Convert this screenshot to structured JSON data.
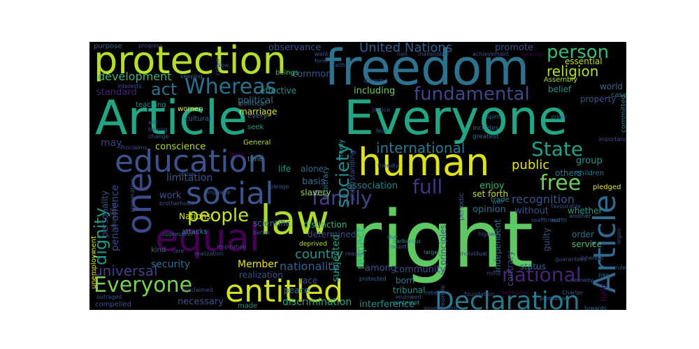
{
  "wordcloud": {
    "background": "#000000",
    "colormap": "viridis",
    "words": [
      {
        "text": "right",
        "color": "#5ec962"
      },
      {
        "text": "Article",
        "color": "#21a585"
      },
      {
        "text": "Everyone",
        "color": "#21a585"
      },
      {
        "text": "freedom",
        "color": "#2c728e"
      },
      {
        "text": "protection",
        "color": "#b5de2b"
      },
      {
        "text": "human",
        "color": "#dde318"
      },
      {
        "text": "law",
        "color": "#addc30"
      },
      {
        "text": "equal",
        "color": "#440154"
      },
      {
        "text": "education",
        "color": "#3b528b"
      },
      {
        "text": "entitled",
        "color": "#d2e21b"
      },
      {
        "text": "social",
        "color": "#39558c"
      },
      {
        "text": "one",
        "color": "#3e4a89"
      },
      {
        "text": "Declaration",
        "color": "#2a788e"
      },
      {
        "text": "Article",
        "color": "#31688e"
      },
      {
        "text": "Everyone",
        "color": "#7ad151"
      },
      {
        "text": "Whereas",
        "color": "#2c728e"
      },
      {
        "text": "fundamental",
        "color": "#3f4788"
      },
      {
        "text": "free",
        "color": "#6ccd5a"
      },
      {
        "text": "people",
        "color": "#cae11f"
      },
      {
        "text": "family",
        "color": "#414487"
      },
      {
        "text": "full",
        "color": "#46337e"
      },
      {
        "text": "national",
        "color": "#482475"
      },
      {
        "text": "society",
        "color": "#23898e"
      },
      {
        "text": "State",
        "color": "#1fa088"
      },
      {
        "text": "universal",
        "color": "#433e85"
      },
      {
        "text": "dignity",
        "color": "#1f9a8a"
      },
      {
        "text": "person",
        "color": "#3aba76"
      },
      {
        "text": "religion",
        "color": "#b8de29"
      },
      {
        "text": "act",
        "color": "#2d708e"
      },
      {
        "text": "development",
        "color": "#35b779"
      },
      {
        "text": "international",
        "color": "#2a788e"
      },
      {
        "text": "United Nations",
        "color": "#355f8d"
      },
      {
        "text": "country",
        "color": "#1f988b"
      },
      {
        "text": "public",
        "color": "#e5e419"
      },
      {
        "text": "nationality",
        "color": "#33638d"
      },
      {
        "text": "respect",
        "color": "#27ad81"
      },
      {
        "text": "recognition",
        "color": "#3b528b"
      },
      {
        "text": "security",
        "color": "#2e6e8e"
      },
      {
        "text": "Member",
        "color": "#e7e419"
      },
      {
        "text": "promote",
        "color": "#3b528b"
      },
      {
        "text": "observance",
        "color": "#3b528b"
      },
      {
        "text": "political",
        "color": "#2c728e"
      },
      {
        "text": "standard",
        "color": "#482173"
      },
      {
        "text": "common",
        "color": "#38598c"
      },
      {
        "text": "including",
        "color": "#6ece58"
      },
      {
        "text": "limitation",
        "color": "#38588c"
      },
      {
        "text": "group",
        "color": "#1f968b"
      },
      {
        "text": "enjoy",
        "color": "#35b779"
      },
      {
        "text": "association",
        "color": "#25838e"
      },
      {
        "text": "without",
        "color": "#3b528b"
      },
      {
        "text": "opinion",
        "color": "#2c728e"
      },
      {
        "text": "discrimination",
        "color": "#23a983"
      },
      {
        "text": "necessary",
        "color": "#3b528b"
      },
      {
        "text": "interference",
        "color": "#21918c"
      },
      {
        "text": "conscience",
        "color": "#b5de2b"
      },
      {
        "text": "basis",
        "color": "#31688e"
      },
      {
        "text": "work",
        "color": "#3b528b"
      },
      {
        "text": "community",
        "color": "#3b528b"
      },
      {
        "text": "among",
        "color": "#39558c"
      },
      {
        "text": "essential",
        "color": "#c0df25"
      },
      {
        "text": "belief",
        "color": "#21918c"
      },
      {
        "text": "property",
        "color": "#3b528b"
      },
      {
        "text": "set forth",
        "color": "#c8e020"
      },
      {
        "text": "others",
        "color": "#2a788e"
      },
      {
        "text": "whether",
        "color": "#1f9e89"
      },
      {
        "text": "penal offence",
        "color": "#3f4889"
      },
      {
        "text": "may",
        "color": "#433e85"
      },
      {
        "text": "subjected",
        "color": "#1fa088"
      },
      {
        "text": "born",
        "color": "#2a788e"
      },
      {
        "text": "principles",
        "color": "#3b528b"
      },
      {
        "text": "independent",
        "color": "#2d708e"
      },
      {
        "text": "contrary",
        "color": "#3b528b"
      },
      {
        "text": "Nations",
        "color": "#d8e219"
      },
      {
        "text": "marriage",
        "color": "#dde318"
      },
      {
        "text": "effective",
        "color": "#21918c"
      },
      {
        "text": "life",
        "color": "#21918c"
      },
      {
        "text": "alone",
        "color": "#31688e"
      },
      {
        "text": "slavery",
        "color": "#9fda3a"
      },
      {
        "text": "race",
        "color": "#3b528b"
      },
      {
        "text": "peace",
        "color": "#2a788e"
      },
      {
        "text": "tribunal",
        "color": "#21918c"
      },
      {
        "text": "distinction",
        "color": "#35b779"
      },
      {
        "text": "determined",
        "color": "#3e4a89"
      },
      {
        "text": "realization",
        "color": "#3b528b"
      },
      {
        "text": "scientific",
        "color": "#2c728e"
      },
      {
        "text": "status",
        "color": "#31688e"
      },
      {
        "text": "service",
        "color": "#46c06f"
      },
      {
        "text": "held",
        "color": "#440154"
      },
      {
        "text": "guilty",
        "color": "#3b528b"
      },
      {
        "text": "order",
        "color": "#2c728e"
      },
      {
        "text": "world",
        "color": "#31688e"
      },
      {
        "text": "case",
        "color": "#2a788e"
      },
      {
        "text": "Assembly",
        "color": "#a0da39"
      },
      {
        "text": "personality",
        "color": "#3b528b"
      },
      {
        "text": "unemployment",
        "color": "#dde318"
      },
      {
        "text": "purpose",
        "color": "#31688e"
      },
      {
        "text": "beings",
        "color": "#35b779"
      },
      {
        "text": "teaching",
        "color": "#21918c"
      },
      {
        "text": "women",
        "color": "#fde725"
      },
      {
        "text": "cultural",
        "color": "#31688e"
      },
      {
        "text": "political",
        "color": "#2c728e"
      },
      {
        "text": "seek",
        "color": "#21918c"
      },
      {
        "text": "every",
        "color": "#31688e"
      },
      {
        "text": "General",
        "color": "#b5de2b"
      },
      {
        "text": "time",
        "color": "#21918c"
      },
      {
        "text": "arbitrary",
        "color": "#2c728e"
      },
      {
        "text": "freely",
        "color": "#1f9e89"
      },
      {
        "text": "understanding",
        "color": "#3b528b"
      },
      {
        "text": "trade",
        "color": "#21918c"
      },
      {
        "text": "periodic",
        "color": "#3b528b"
      },
      {
        "text": "children",
        "color": "#2a788e"
      },
      {
        "text": "pledged",
        "color": "#e5e419"
      },
      {
        "text": "compelled",
        "color": "#3b528b"
      },
      {
        "text": "made",
        "color": "#21918c"
      },
      {
        "text": "kind",
        "color": "#2c728e"
      },
      {
        "text": "attacks",
        "color": "#21918c"
      },
      {
        "text": "committed",
        "color": "#2a788e"
      },
      {
        "text": "includes",
        "color": "#31688e"
      },
      {
        "text": "greatest",
        "color": "#31688e"
      },
      {
        "text": "progress",
        "color": "#3b528b"
      },
      {
        "text": "faith",
        "color": "#3b528b"
      },
      {
        "text": "inalienable",
        "color": "#3b528b"
      },
      {
        "text": "achievement",
        "color": "#3b528b"
      },
      {
        "text": "tyranny",
        "color": "#440154"
      },
      {
        "text": "rebellion",
        "color": "#3b528b"
      },
      {
        "text": "Charter",
        "color": "#3b528b"
      },
      {
        "text": "pay",
        "color": "#31688e"
      },
      {
        "text": "rule",
        "color": "#31688e"
      },
      {
        "text": "towards",
        "color": "#31688e"
      },
      {
        "text": "deprived",
        "color": "#b5de2b"
      },
      {
        "text": "well",
        "color": "#31688e"
      },
      {
        "text": "resort",
        "color": "#31688e"
      },
      {
        "text": "due",
        "color": "#31688e"
      },
      {
        "text": "contempt",
        "color": "#21918c"
      },
      {
        "text": "barbarous",
        "color": "#21918c"
      },
      {
        "text": "Proclaims",
        "color": "#3b528b"
      },
      {
        "text": "interests",
        "color": "#3b528b"
      },
      {
        "text": "keeping",
        "color": "#31688e"
      },
      {
        "text": "cooperation",
        "color": "#3b528b"
      },
      {
        "text": "oppression",
        "color": "#31688e"
      },
      {
        "text": "proclaimed",
        "color": "#3b528b"
      },
      {
        "text": "outraged",
        "color": "#3b528b"
      },
      {
        "text": "protected",
        "color": "#31688e"
      },
      {
        "text": "endowed",
        "color": "#3b528b"
      },
      {
        "text": "foundation",
        "color": "#3b528b"
      },
      {
        "text": "territories",
        "color": "#440154"
      },
      {
        "text": "promotion",
        "color": "#31688e"
      },
      {
        "text": "spirit",
        "color": "#31688e"
      },
      {
        "text": "justice",
        "color": "#3b528b"
      },
      {
        "text": "origin",
        "color": "#31688e"
      },
      {
        "text": "worth",
        "color": "#31688e"
      },
      {
        "text": "another",
        "color": "#31688e"
      },
      {
        "text": "favourable",
        "color": "#3b528b"
      },
      {
        "text": "reaffirmed",
        "color": "#3b528b"
      },
      {
        "text": "importance",
        "color": "#3b528b"
      },
      {
        "text": "language",
        "color": "#3b528b"
      },
      {
        "text": "brotherhood",
        "color": "#3b528b"
      },
      {
        "text": "belong",
        "color": "#3b528b"
      },
      {
        "text": "better",
        "color": "#3b528b"
      },
      {
        "text": "larger",
        "color": "#21918c"
      },
      {
        "text": "change",
        "color": "#3b528b"
      },
      {
        "text": "will",
        "color": "#3b528b"
      },
      {
        "text": "speech",
        "color": "#3b528b"
      },
      {
        "text": "non",
        "color": "#3b528b"
      },
      {
        "text": "want",
        "color": "#3b528b"
      },
      {
        "text": "Now",
        "color": "#3b528b"
      },
      {
        "text": "form",
        "color": "#3b528b"
      },
      {
        "text": "fear",
        "color": "#3b528b"
      },
      {
        "text": "mind",
        "color": "#3b528b"
      },
      {
        "text": "disregard",
        "color": "#3b528b"
      },
      {
        "text": "individual",
        "color": "#3b528b"
      },
      {
        "text": "highest",
        "color": "#3b528b"
      },
      {
        "text": "government",
        "color": "#3b528b"
      },
      {
        "text": "care",
        "color": "#3b528b"
      },
      {
        "text": "men",
        "color": "#440154"
      },
      {
        "text": "pledge",
        "color": "#3b528b"
      },
      {
        "text": "colour",
        "color": "#3b528b"
      },
      {
        "text": "Preamble",
        "color": "#3b528b"
      },
      {
        "text": "friendly",
        "color": "#3b528b"
      },
      {
        "text": "inspiration",
        "color": "#3b528b"
      },
      {
        "text": "organ",
        "color": "#3b528b"
      },
      {
        "text": "strive",
        "color": "#3b528b"
      },
      {
        "text": "reason",
        "color": "#3b528b"
      },
      {
        "text": "inherent",
        "color": "#3b528b"
      },
      {
        "text": "guarantees",
        "color": "#3b528b"
      },
      {
        "text": "remedy",
        "color": "#3b528b"
      },
      {
        "text": "realization",
        "color": "#3b528b"
      }
    ]
  }
}
